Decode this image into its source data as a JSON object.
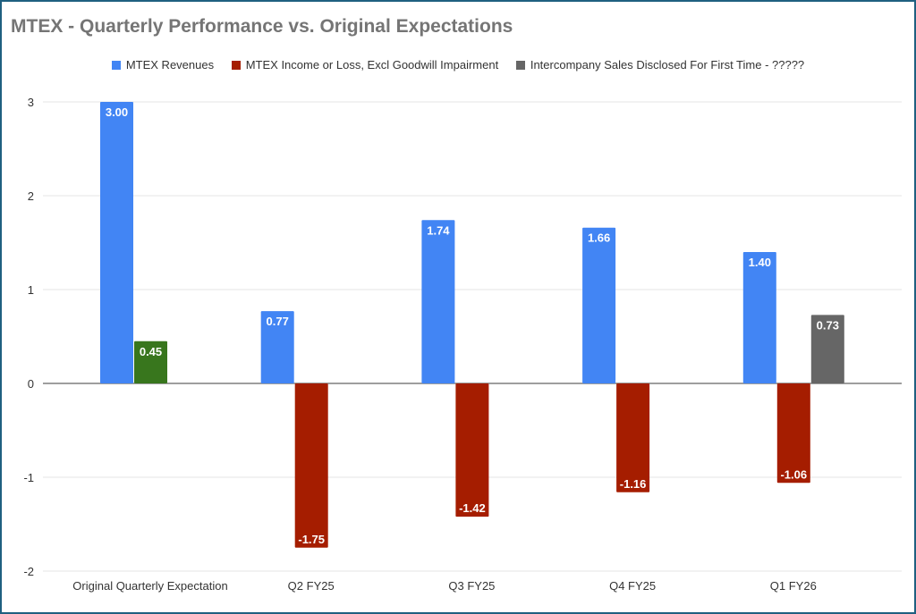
{
  "chart_data": {
    "type": "bar",
    "title": "MTEX - Quarterly Performance vs. Original Expectations",
    "categories": [
      "Original Quarterly Expectation",
      "Q2 FY25",
      "Q3 FY25",
      "Q4 FY25",
      "Q1 FY26"
    ],
    "series": [
      {
        "name": "MTEX Revenues",
        "color": "#4285f4",
        "values": [
          3.0,
          0.77,
          1.74,
          1.66,
          1.4
        ],
        "labels": [
          "3.00",
          "0.77",
          "1.74",
          "1.66",
          "1.40"
        ]
      },
      {
        "name": "MTEX Income or Loss, Excl Goodwill Impairment",
        "color": "#a51d00",
        "point_colors": [
          "#38761d",
          null,
          null,
          null,
          null
        ],
        "values": [
          0.45,
          -1.75,
          -1.42,
          -1.16,
          -1.06
        ],
        "labels": [
          "0.45",
          "-1.75",
          "-1.42",
          "-1.16",
          "-1.06"
        ]
      },
      {
        "name": "Intercompany Sales Disclosed For First Time - ?????",
        "color": "#666666",
        "values": [
          null,
          null,
          null,
          null,
          0.73
        ],
        "labels": [
          "",
          "",
          "",
          "",
          "0.73"
        ]
      }
    ],
    "ylim": [
      -2,
      3
    ],
    "yticks": [
      "3",
      "2",
      "1",
      "0",
      "-1",
      "-2"
    ],
    "ytick_values": [
      3,
      2,
      1,
      0,
      -1,
      -2
    ],
    "grid": true,
    "legend_position": "top"
  }
}
